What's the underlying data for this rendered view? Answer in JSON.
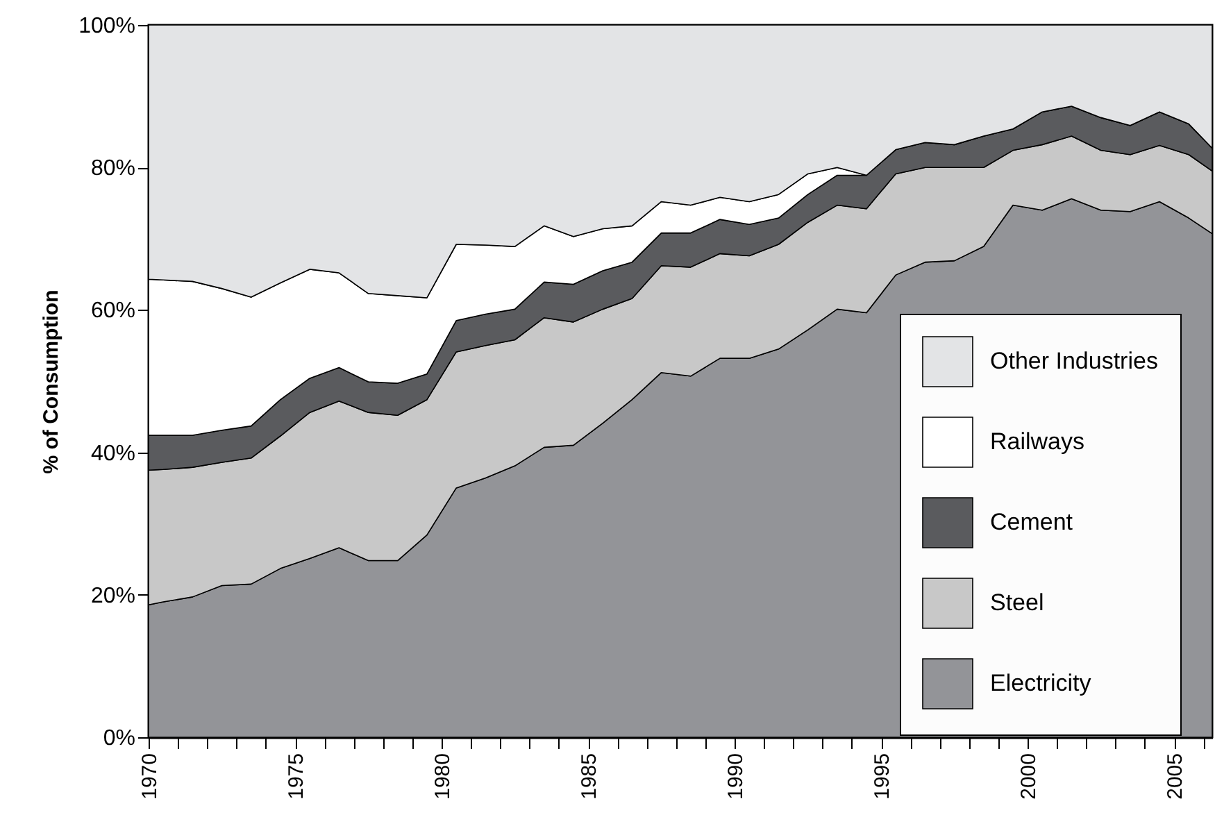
{
  "chart_data": {
    "type": "area",
    "stacked": true,
    "ylabel": "% of Consumption",
    "x": [
      1970,
      1970.5,
      1971.5,
      1972.5,
      1973.5,
      1974.5,
      1975.5,
      1976.5,
      1977.5,
      1978.5,
      1979.5,
      1980.5,
      1981.5,
      1982.5,
      1983.5,
      1984.5,
      1985.5,
      1986.5,
      1987.5,
      1988.5,
      1989.5,
      1990.5,
      1991.5,
      1992.5,
      1993.5,
      1994.5,
      1995.5,
      1996.5,
      1997.5,
      1998.5,
      1999.5,
      2000.5,
      2001.5,
      2002.5,
      2003.5,
      2004.5,
      2005.5,
      2006.3
    ],
    "series": [
      {
        "name": "Electricity",
        "color": "#939498",
        "values": [
          18.6,
          19.0,
          19.7,
          21.3,
          21.5,
          23.7,
          25.1,
          26.6,
          24.8,
          24.8,
          28.4,
          35.0,
          36.4,
          38.1,
          40.7,
          41.0,
          44.1,
          47.4,
          51.2,
          50.7,
          53.2,
          53.2,
          54.5,
          57.2,
          60.1,
          59.6,
          64.9,
          66.7,
          66.9,
          68.9,
          74.7,
          74.0,
          75.6,
          74.0,
          73.8,
          75.2,
          72.9,
          70.7
        ]
      },
      {
        "name": "Steel",
        "color": "#c8c8c8",
        "values": [
          18.9,
          18.6,
          18.2,
          17.3,
          17.7,
          18.6,
          20.5,
          20.6,
          20.8,
          20.4,
          19.0,
          19.1,
          18.6,
          17.7,
          18.2,
          17.3,
          16.0,
          14.2,
          15.0,
          15.3,
          14.7,
          14.4,
          14.7,
          15.1,
          14.6,
          14.6,
          14.2,
          13.3,
          13.1,
          11.1,
          7.7,
          9.2,
          8.8,
          8.4,
          8.0,
          7.9,
          8.9,
          8.8
        ]
      },
      {
        "name": "Cement",
        "color": "#5a5b5e",
        "values": [
          4.9,
          4.8,
          4.5,
          4.5,
          4.5,
          5.1,
          4.8,
          4.7,
          4.3,
          4.5,
          3.6,
          4.4,
          4.4,
          4.3,
          5.0,
          5.3,
          5.4,
          5.1,
          4.6,
          4.8,
          4.8,
          4.4,
          3.7,
          3.9,
          4.2,
          4.7,
          3.4,
          3.5,
          3.2,
          4.4,
          3.0,
          4.6,
          4.2,
          4.6,
          4.1,
          4.7,
          4.3,
          3.2
        ]
      },
      {
        "name": "Railways",
        "color": "#ffffff",
        "values": [
          21.9,
          21.8,
          21.6,
          19.9,
          18.1,
          16.4,
          15.3,
          13.3,
          12.4,
          12.3,
          10.7,
          10.7,
          9.7,
          8.8,
          7.9,
          6.7,
          5.9,
          5.1,
          4.4,
          3.9,
          3.1,
          3.2,
          3.3,
          2.9,
          1.1,
          0,
          0,
          0,
          0,
          0,
          0,
          0,
          0,
          0,
          0,
          0,
          0,
          0
        ]
      },
      {
        "name": "Other Industries",
        "color": "#e3e4e6",
        "values": [
          35.7,
          35.8,
          36.0,
          37.0,
          38.2,
          36.2,
          34.3,
          34.8,
          37.7,
          38.0,
          38.3,
          30.8,
          30.9,
          31.1,
          28.2,
          29.7,
          28.6,
          28.2,
          24.8,
          25.3,
          24.2,
          24.8,
          23.8,
          20.9,
          20.0,
          21.1,
          17.5,
          16.5,
          16.8,
          15.6,
          14.6,
          12.2,
          11.4,
          13.0,
          14.1,
          12.2,
          13.9,
          17.3
        ]
      }
    ],
    "xlim": [
      1970,
      2006.3
    ],
    "xticks": [
      1970,
      {
        "value": 1971,
        "label": null
      },
      {
        "value": 1972,
        "label": null
      },
      {
        "value": 1973,
        "label": null
      },
      {
        "value": 1974,
        "label": null
      },
      1975,
      {
        "value": 1976,
        "label": null
      },
      {
        "value": 1977,
        "label": null
      },
      {
        "value": 1978,
        "label": null
      },
      {
        "value": 1979,
        "label": null
      },
      1980,
      {
        "value": 1981,
        "label": null
      },
      {
        "value": 1982,
        "label": null
      },
      {
        "value": 1983,
        "label": null
      },
      {
        "value": 1984,
        "label": null
      },
      1985,
      {
        "value": 1986,
        "label": null
      },
      {
        "value": 1987,
        "label": null
      },
      {
        "value": 1988,
        "label": null
      },
      {
        "value": 1989,
        "label": null
      },
      1990,
      {
        "value": 1991,
        "label": null
      },
      {
        "value": 1992,
        "label": null
      },
      {
        "value": 1993,
        "label": null
      },
      {
        "value": 1994,
        "label": null
      },
      1995,
      {
        "value": 1996,
        "label": null
      },
      {
        "value": 1997,
        "label": null
      },
      {
        "value": 1998,
        "label": null
      },
      {
        "value": 1999,
        "label": null
      },
      2000,
      {
        "value": 2001,
        "label": null
      },
      {
        "value": 2002,
        "label": null
      },
      {
        "value": 2003,
        "label": null
      },
      {
        "value": 2004,
        "label": null
      },
      2005,
      {
        "value": 2006,
        "label": null
      }
    ],
    "ylim": [
      0,
      100
    ],
    "yticks": [
      {
        "value": 0,
        "label": "0%"
      },
      {
        "value": 20,
        "label": "20%"
      },
      {
        "value": 40,
        "label": "40%"
      },
      {
        "value": 60,
        "label": "60%"
      },
      {
        "value": 80,
        "label": "80%"
      },
      {
        "value": 100,
        "label": "100%"
      }
    ],
    "legend": "bottom right",
    "grid": false
  }
}
